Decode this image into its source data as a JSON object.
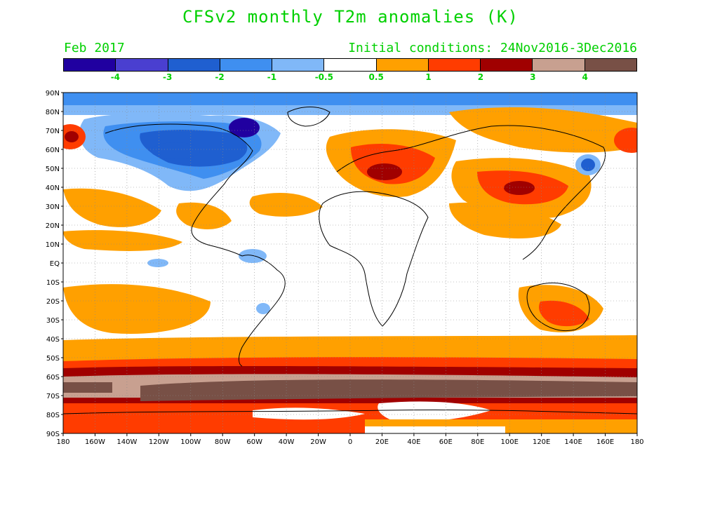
{
  "title": "CFSv2 monthly T2m anomalies (K)",
  "valid_month": "Feb 2017",
  "initial_conditions": "Initial conditions: 24Nov2016-3Dec2016",
  "colorbar": {
    "colors": [
      "#2000a0",
      "#4a3fd0",
      "#1f5fd0",
      "#3f8ff0",
      "#80b8f8",
      "#ffffff",
      "#ffa000",
      "#ff3c00",
      "#a00000",
      "#c8a090",
      "#785046"
    ],
    "labels": [
      "-4",
      "-3",
      "-2",
      "-1",
      "-0.5",
      "0.5",
      "1",
      "2",
      "3",
      "4"
    ]
  },
  "axes": {
    "lon_labels": [
      "180",
      "160W",
      "140W",
      "120W",
      "100W",
      "80W",
      "60W",
      "40W",
      "20W",
      "0",
      "20E",
      "40E",
      "60E",
      "80E",
      "100E",
      "120E",
      "140E",
      "160E",
      "180"
    ],
    "lat_labels": [
      "90N",
      "80N",
      "70N",
      "60N",
      "50N",
      "40N",
      "30N",
      "20N",
      "10N",
      "EQ",
      "10S",
      "20S",
      "30S",
      "40S",
      "50S",
      "60S",
      "70S",
      "80S",
      "90S"
    ]
  }
}
